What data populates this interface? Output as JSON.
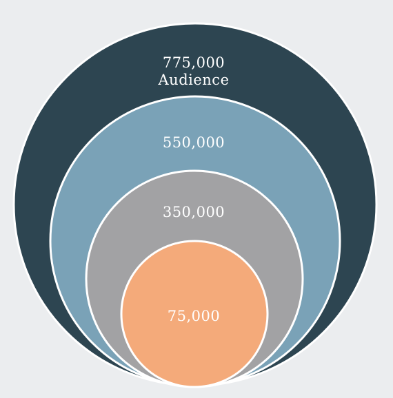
{
  "diagram": {
    "type": "nested-circles",
    "background": "#ebedef",
    "rings": [
      {
        "value": "775,000",
        "label": "Audience",
        "color": "#2d4551"
      },
      {
        "value": "550,000",
        "label": "",
        "color": "#7aa2b7"
      },
      {
        "value": "350,000",
        "label": "",
        "color": "#a2a2a4"
      },
      {
        "value": "75,000",
        "label": "",
        "color": "#f4aa7a"
      }
    ]
  }
}
